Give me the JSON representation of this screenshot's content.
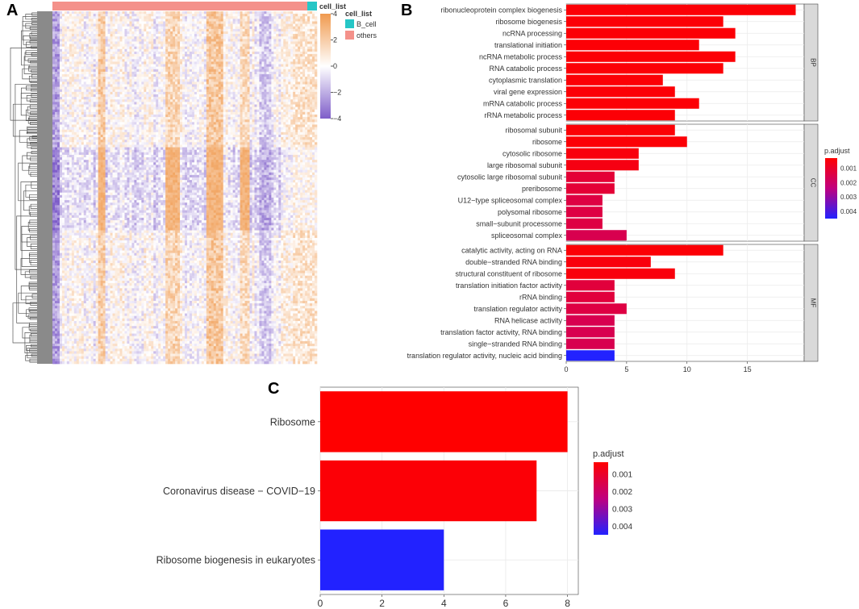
{
  "panels": {
    "a": "A",
    "b": "B",
    "c": "C"
  },
  "heatmap": {
    "annotation_title": "cell_list",
    "legend_title": "cell_list",
    "legend_items": [
      {
        "label": "B_cell",
        "color": "#26C6C6"
      },
      {
        "label": "others",
        "color": "#F4918A"
      }
    ],
    "scale_ticks": [
      "4",
      "2",
      "0",
      "−2",
      "−4"
    ],
    "scale_values": [
      4,
      2,
      0,
      -2,
      -4
    ],
    "colors": {
      "low": "#7E5DC9",
      "mid": "#FFFFFF",
      "high": "#F09A4F"
    }
  },
  "chart_data": [
    {
      "type": "bar",
      "orientation": "horizontal",
      "title": "",
      "xlabel": "",
      "xlim": [
        0,
        19.7
      ],
      "x_ticks": [
        0,
        5,
        10,
        15
      ],
      "x_tick_labels": [
        "0",
        "5",
        "10",
        "15"
      ],
      "legend_title": "p.adjust",
      "legend_ticks": [
        "0.001",
        "0.002",
        "0.003",
        "0.004"
      ],
      "legend_tick_values": [
        0.001,
        0.002,
        0.003,
        0.004
      ],
      "legend_range": [
        0.0003,
        0.0045
      ],
      "color_low": "#FF0000",
      "color_high": "#2222FF",
      "facets": [
        {
          "name": "BP",
          "categories": [
            "ribonucleoprotein complex biogenesis",
            "ribosome biogenesis",
            "ncRNA processing",
            "translational initiation",
            "ncRNA metabolic process",
            "RNA catabolic process",
            "cytoplasmic translation",
            "viral gene expression",
            "mRNA catabolic process",
            "rRNA metabolic process"
          ],
          "values": [
            19,
            13,
            14,
            11,
            14,
            13,
            8,
            9,
            11,
            9
          ],
          "p_adjust": [
            0.0004,
            0.0004,
            0.0004,
            0.0004,
            0.0004,
            0.0004,
            0.0004,
            0.0004,
            0.0004,
            0.0004
          ]
        },
        {
          "name": "CC",
          "categories": [
            "ribosomal subunit",
            "ribosome",
            "cytosolic ribosome",
            "large ribosomal subunit",
            "cytosolic large ribosomal subunit",
            "preribosome",
            "U12−type spliceosomal complex",
            "polysomal ribosome",
            "small−subunit processome",
            "spliceosomal complex"
          ],
          "values": [
            9,
            10,
            6,
            6,
            4,
            4,
            3,
            3,
            3,
            5
          ],
          "p_adjust": [
            0.0004,
            0.0004,
            0.0005,
            0.0006,
            0.0012,
            0.0012,
            0.0014,
            0.0014,
            0.0014,
            0.0016
          ]
        },
        {
          "name": "MF",
          "categories": [
            "catalytic activity, acting on RNA",
            "double−stranded RNA binding",
            "structural constituent of ribosome",
            "translation initiation factor activity",
            "rRNA binding",
            "translation regulator activity",
            "RNA helicase activity",
            "translation factor activity, RNA binding",
            "single−stranded RNA binding",
            "translation regulator activity, nucleic acid binding"
          ],
          "values": [
            13,
            7,
            9,
            4,
            4,
            5,
            4,
            4,
            4,
            4
          ],
          "p_adjust": [
            0.0004,
            0.0005,
            0.0005,
            0.0013,
            0.0013,
            0.0014,
            0.0016,
            0.0016,
            0.0016,
            0.0045
          ]
        }
      ]
    },
    {
      "type": "bar",
      "orientation": "horizontal",
      "title": "",
      "xlabel": "",
      "xlim": [
        0,
        8.35
      ],
      "x_ticks": [
        0,
        2,
        4,
        6,
        8
      ],
      "x_tick_labels": [
        "0",
        "2",
        "4",
        "6",
        "8"
      ],
      "legend_title": "p.adjust",
      "legend_ticks": [
        "0.001",
        "0.002",
        "0.003",
        "0.004"
      ],
      "legend_tick_values": [
        0.001,
        0.002,
        0.003,
        0.004
      ],
      "legend_range": [
        0.0003,
        0.0045
      ],
      "color_low": "#FF0000",
      "color_high": "#2222FF",
      "categories": [
        "Ribosome",
        "Coronavirus disease − COVID−19",
        "Ribosome biogenesis in eukaryotes"
      ],
      "values": [
        8,
        7,
        4
      ],
      "p_adjust": [
        0.0003,
        0.0004,
        0.0045
      ]
    }
  ]
}
